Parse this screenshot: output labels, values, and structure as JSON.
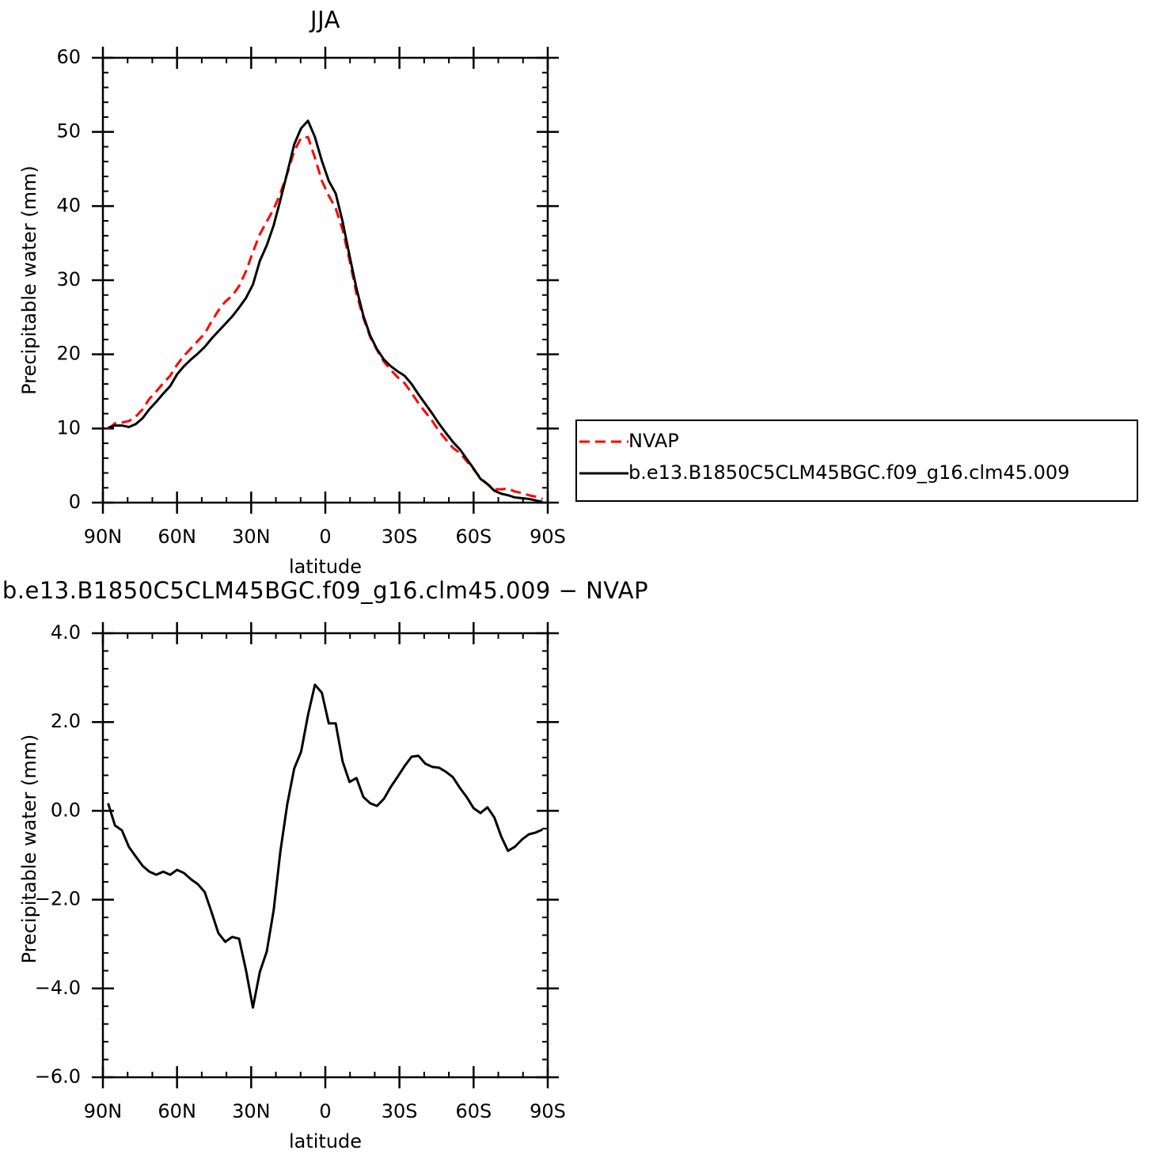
{
  "chart_data": [
    {
      "type": "line",
      "title": "JJA",
      "xlabel": "latitude",
      "ylabel": "Precipitable water (mm)",
      "x": [
        87.9,
        85.1,
        82.3,
        79.5,
        76.7,
        73.9,
        71.2,
        68.4,
        65.6,
        62.8,
        60.0,
        57.2,
        54.4,
        51.6,
        48.8,
        46.1,
        43.3,
        40.5,
        37.7,
        34.9,
        32.1,
        29.3,
        26.5,
        23.7,
        20.9,
        18.2,
        15.4,
        12.6,
        9.8,
        7.0,
        4.2,
        1.4,
        -1.4,
        -4.2,
        -7.0,
        -9.8,
        -12.6,
        -15.4,
        -18.2,
        -20.9,
        -23.7,
        -26.5,
        -29.3,
        -32.1,
        -34.9,
        -37.7,
        -40.5,
        -43.3,
        -46.1,
        -48.8,
        -51.6,
        -54.4,
        -57.2,
        -60.0,
        -62.8,
        -65.6,
        -68.4,
        -71.2,
        -73.9,
        -76.7,
        -79.5,
        -82.3,
        -85.1,
        -87.9
      ],
      "series": [
        {
          "name": "NVAP",
          "color": "#ff0000",
          "dash": true,
          "values": [
            9.9,
            10.7,
            10.8,
            11.0,
            11.6,
            12.6,
            14.0,
            15.0,
            16.1,
            17.1,
            18.6,
            19.8,
            20.8,
            21.8,
            22.8,
            24.4,
            25.9,
            27.1,
            27.9,
            29.2,
            31.2,
            33.8,
            36.2,
            37.9,
            39.6,
            41.7,
            44.4,
            47.4,
            49.2,
            49.3,
            46.5,
            43.4,
            41.4,
            39.7,
            36.8,
            32.7,
            28.2,
            24.9,
            22.3,
            20.6,
            19.0,
            17.9,
            16.9,
            16.1,
            14.8,
            13.4,
            12.2,
            11.0,
            9.6,
            8.5,
            7.4,
            6.7,
            5.6,
            4.5,
            3.3,
            2.5,
            1.8,
            1.8,
            1.9,
            1.5,
            1.3,
            1.0,
            0.8,
            0.5
          ]
        },
        {
          "name": "b.e13.B1850C5CLM45BGC.f09_g16.clm45.009",
          "color": "#000000",
          "dash": false,
          "values": [
            10.1,
            10.4,
            10.4,
            10.2,
            10.6,
            11.4,
            12.6,
            13.6,
            14.7,
            15.7,
            17.3,
            18.4,
            19.3,
            20.1,
            21.0,
            22.1,
            23.1,
            24.1,
            25.1,
            26.3,
            27.6,
            29.4,
            32.6,
            34.7,
            37.4,
            40.8,
            44.5,
            48.3,
            50.5,
            51.5,
            49.3,
            46.1,
            43.4,
            41.7,
            37.9,
            33.3,
            28.9,
            25.2,
            22.5,
            20.7,
            19.3,
            18.4,
            17.7,
            17.1,
            16.0,
            14.6,
            13.3,
            12.0,
            10.6,
            9.4,
            8.2,
            7.2,
            5.9,
            4.6,
            3.2,
            2.5,
            1.6,
            1.2,
            1.0,
            0.7,
            0.6,
            0.5,
            0.3,
            0.1
          ]
        }
      ],
      "xlim": [
        90,
        -90
      ],
      "xticks": [
        {
          "value": 90,
          "label": "90N"
        },
        {
          "value": 60,
          "label": "60N"
        },
        {
          "value": 30,
          "label": "30N"
        },
        0,
        {
          "value": -30,
          "label": "30S"
        },
        {
          "value": -60,
          "label": "60S"
        },
        {
          "value": -90,
          "label": "90S"
        }
      ],
      "ylim": [
        0,
        60
      ],
      "yticks": [
        0,
        10,
        20,
        30,
        40,
        50,
        60
      ],
      "legend": "right"
    },
    {
      "type": "line",
      "title": "b.e13.B1850C5CLM45BGC.f09_g16.clm45.009 − NVAP",
      "xlabel": "latitude",
      "ylabel": "Precipitable water (mm)",
      "x": [
        87.9,
        85.1,
        82.3,
        79.5,
        76.7,
        73.9,
        71.2,
        68.4,
        65.6,
        62.8,
        60.0,
        57.2,
        54.4,
        51.6,
        48.8,
        46.1,
        43.3,
        40.5,
        37.7,
        34.9,
        32.1,
        29.3,
        26.5,
        23.7,
        20.9,
        18.2,
        15.4,
        12.6,
        9.8,
        7.0,
        4.2,
        1.4,
        -1.4,
        -4.2,
        -7.0,
        -9.8,
        -12.6,
        -15.4,
        -18.2,
        -20.9,
        -23.7,
        -26.5,
        -29.3,
        -32.1,
        -34.9,
        -37.7,
        -40.5,
        -43.3,
        -46.1,
        -48.8,
        -51.6,
        -54.4,
        -57.2,
        -60.0,
        -62.8,
        -65.6,
        -68.4,
        -71.2,
        -73.9,
        -76.7,
        -79.5,
        -82.3,
        -85.1,
        -87.9
      ],
      "values": [
        0.17,
        -0.33,
        -0.44,
        -0.81,
        -1.03,
        -1.24,
        -1.37,
        -1.44,
        -1.37,
        -1.44,
        -1.33,
        -1.4,
        -1.54,
        -1.65,
        -1.83,
        -2.27,
        -2.75,
        -2.95,
        -2.84,
        -2.88,
        -3.59,
        -4.43,
        -3.63,
        -3.17,
        -2.24,
        -0.92,
        0.15,
        0.95,
        1.33,
        2.16,
        2.84,
        2.66,
        1.97,
        1.97,
        1.11,
        0.65,
        0.74,
        0.31,
        0.17,
        0.11,
        0.27,
        0.54,
        0.77,
        1.01,
        1.22,
        1.24,
        1.06,
        0.99,
        0.97,
        0.88,
        0.76,
        0.52,
        0.31,
        0.06,
        -0.05,
        0.08,
        -0.15,
        -0.58,
        -0.9,
        -0.81,
        -0.65,
        -0.53,
        -0.49,
        -0.42
      ],
      "color": "#000000",
      "xlim": [
        90,
        -90
      ],
      "xticks": [
        {
          "value": 90,
          "label": "90N"
        },
        {
          "value": 60,
          "label": "60N"
        },
        {
          "value": 30,
          "label": "30N"
        },
        0,
        {
          "value": -30,
          "label": "30S"
        },
        {
          "value": -60,
          "label": "60S"
        },
        {
          "value": -90,
          "label": "90S"
        }
      ],
      "ylim": [
        -6,
        4
      ],
      "yticks": [
        {
          "value": -6,
          "label": "−6.0"
        },
        {
          "value": -4,
          "label": "−4.0"
        },
        {
          "value": -2,
          "label": "−2.0"
        },
        {
          "value": 0,
          "label": "0.0"
        },
        {
          "value": 2,
          "label": "2.0"
        },
        {
          "value": 4,
          "label": "4.0"
        }
      ]
    }
  ]
}
